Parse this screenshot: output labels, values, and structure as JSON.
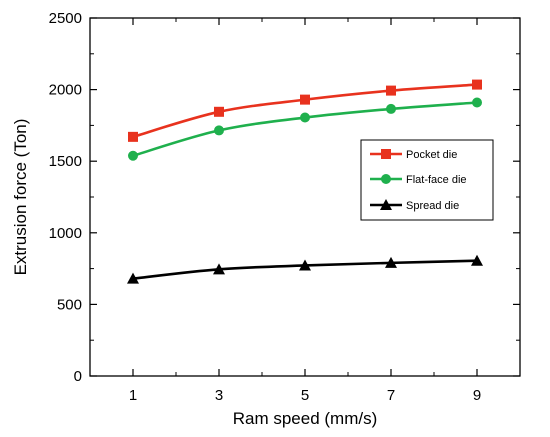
{
  "chart_data": {
    "type": "line",
    "xlabel": "Ram speed (mm/s)",
    "ylabel": "Extrusion force (Ton)",
    "x": [
      1,
      3,
      5,
      7,
      9
    ],
    "xticks": [
      "1",
      "3",
      "5",
      "7",
      "9"
    ],
    "yticks": [
      "0",
      "500",
      "1000",
      "1500",
      "2000",
      "2500"
    ],
    "xlim": [
      0,
      10
    ],
    "ylim": [
      0,
      2500
    ],
    "grid": false,
    "legend_position": "right",
    "series": [
      {
        "name": "Pocket die",
        "color": "#e8321e",
        "marker": "square",
        "values": [
          1670,
          1845,
          1930,
          1993,
          2035
        ]
      },
      {
        "name": "Flat-face die",
        "color": "#1fb04d",
        "marker": "circle",
        "values": [
          1538,
          1715,
          1805,
          1865,
          1910
        ]
      },
      {
        "name": "Spread die",
        "color": "#000000",
        "marker": "triangle",
        "values": [
          680,
          745,
          772,
          790,
          805
        ]
      }
    ]
  }
}
